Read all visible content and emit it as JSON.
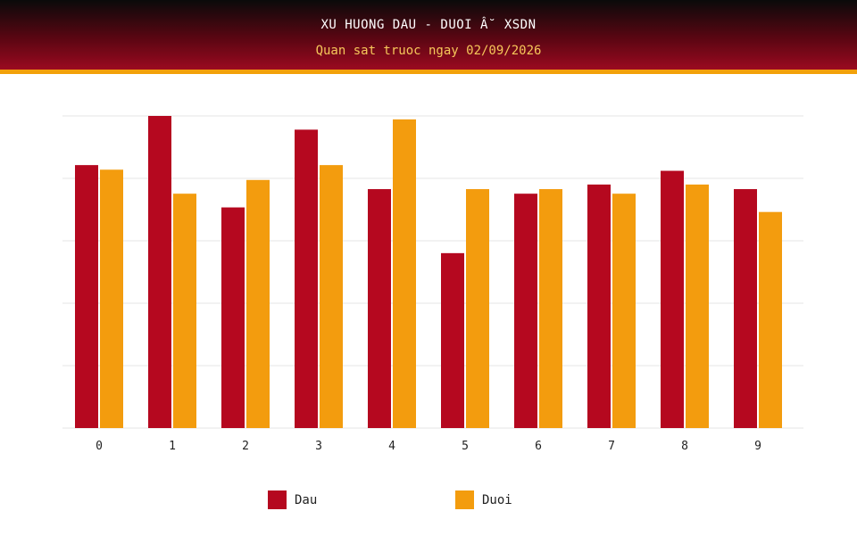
{
  "header": {
    "title": "XU HUONG DAU - DUOI Â˘ XSDN",
    "subtitle": "Quan sat truoc ngay 02/09/2026"
  },
  "colors": {
    "dau": "#b5081f",
    "duoi": "#f39c0e",
    "grid": "#e6e6e6"
  },
  "chart_data": {
    "type": "bar",
    "categories": [
      "0",
      "1",
      "2",
      "3",
      "4",
      "5",
      "6",
      "7",
      "8",
      "9"
    ],
    "series": [
      {
        "name": "Dau",
        "values": [
          23,
          27.3,
          19.3,
          26.1,
          20.9,
          15.3,
          20.5,
          21.3,
          22.5,
          20.9
        ]
      },
      {
        "name": "Duoi",
        "values": [
          22.6,
          20.5,
          21.7,
          23,
          27,
          20.9,
          20.9,
          20.5,
          21.3,
          18.9
        ]
      }
    ],
    "ylim": [
      0,
      27.3
    ],
    "grid": true,
    "legend_position": "bottom-center"
  }
}
